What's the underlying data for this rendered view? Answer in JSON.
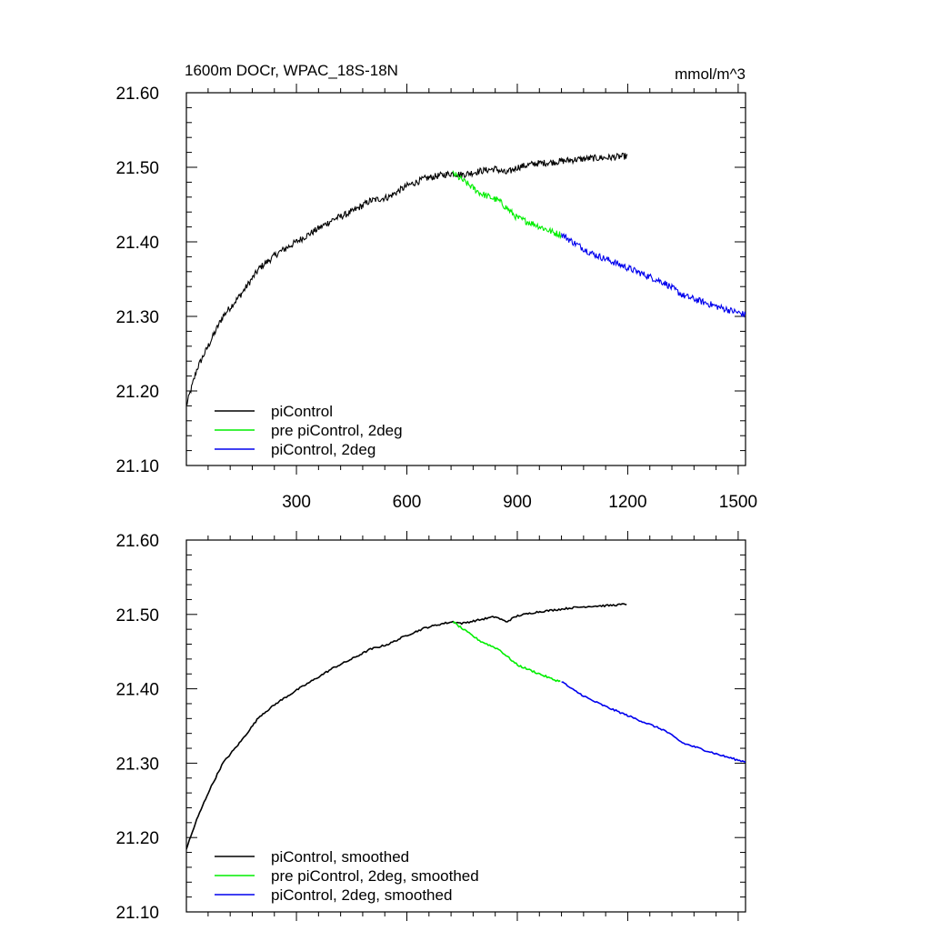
{
  "figure": {
    "title": "1600m DOCr, WPAC_18S-18N",
    "units": "mmol/m^3"
  },
  "colors": {
    "picontrol": "#000000",
    "pre_picontrol_2deg": "#00ee00",
    "picontrol_2deg": "#0000ee"
  },
  "chart_data": [
    {
      "type": "line",
      "panel": "top",
      "title": "1600m DOCr, WPAC_18S-18N",
      "units_label": "mmol/m^3",
      "xlim": [
        1,
        1520
      ],
      "ylim": [
        21.1,
        21.6
      ],
      "xticks": [
        300,
        600,
        900,
        1200,
        1500
      ],
      "xtick_labels": [
        "300",
        "600",
        "900",
        "1200",
        "1500"
      ],
      "yticks": [
        21.1,
        21.2,
        21.3,
        21.4,
        21.5,
        21.6
      ],
      "ytick_labels": [
        "21.10",
        "21.20",
        "21.30",
        "21.40",
        "21.50",
        "21.60"
      ],
      "legend_position": "bottom-left",
      "noisy": true,
      "series": [
        {
          "name": "piControl",
          "color_key": "picontrol",
          "x": [
            1,
            30,
            60,
            100,
            150,
            200,
            250,
            300,
            350,
            400,
            450,
            500,
            550,
            600,
            650,
            700,
            725,
            750,
            800,
            840,
            870,
            900,
            950,
            1000,
            1050,
            1100,
            1150,
            1200
          ],
          "y": [
            21.18,
            21.23,
            21.26,
            21.3,
            21.33,
            21.365,
            21.385,
            21.4,
            21.415,
            21.43,
            21.44,
            21.455,
            21.46,
            21.475,
            21.485,
            21.49,
            21.492,
            21.49,
            21.495,
            21.498,
            21.492,
            21.5,
            21.505,
            21.507,
            21.51,
            21.512,
            21.513,
            21.515
          ]
        },
        {
          "name": "pre piControl, 2deg",
          "color_key": "pre_picontrol_2deg",
          "x": [
            725,
            750,
            800,
            850,
            900,
            950,
            1000,
            1020
          ],
          "y": [
            21.492,
            21.483,
            21.465,
            21.455,
            21.432,
            21.423,
            21.412,
            21.41
          ]
        },
        {
          "name": "piControl, 2deg",
          "color_key": "picontrol_2deg",
          "x": [
            1020,
            1050,
            1100,
            1150,
            1200,
            1250,
            1300,
            1350,
            1400,
            1450,
            1500,
            1520
          ],
          "y": [
            21.41,
            21.4,
            21.385,
            21.375,
            21.365,
            21.355,
            21.345,
            21.328,
            21.32,
            21.312,
            21.305,
            21.302
          ]
        }
      ]
    },
    {
      "type": "line",
      "panel": "bottom",
      "xlim": [
        1,
        1520
      ],
      "ylim": [
        21.1,
        21.6
      ],
      "xticks": [
        300,
        600,
        900,
        1200,
        1500
      ],
      "xtick_labels": [],
      "yticks": [
        21.1,
        21.2,
        21.3,
        21.4,
        21.5,
        21.6
      ],
      "ytick_labels": [
        "21.10",
        "21.20",
        "21.30",
        "21.40",
        "21.50",
        "21.60"
      ],
      "legend_position": "bottom-left",
      "noisy": false,
      "series": [
        {
          "name": "piControl, smoothed",
          "color_key": "picontrol",
          "x": [
            1,
            30,
            60,
            100,
            150,
            200,
            250,
            300,
            350,
            400,
            450,
            500,
            550,
            600,
            650,
            700,
            725,
            750,
            800,
            840,
            870,
            900,
            950,
            1000,
            1050,
            1100,
            1150,
            1200
          ],
          "y": [
            21.185,
            21.225,
            21.26,
            21.3,
            21.33,
            21.363,
            21.382,
            21.398,
            21.413,
            21.428,
            21.44,
            21.453,
            21.46,
            21.472,
            21.482,
            21.488,
            21.49,
            21.488,
            21.493,
            21.497,
            21.49,
            21.498,
            21.503,
            21.506,
            21.509,
            21.511,
            21.512,
            21.514
          ]
        },
        {
          "name": "pre piControl, 2deg, smoothed",
          "color_key": "pre_picontrol_2deg",
          "x": [
            725,
            750,
            800,
            850,
            900,
            950,
            1000,
            1020
          ],
          "y": [
            21.49,
            21.481,
            21.464,
            21.453,
            21.432,
            21.422,
            21.412,
            21.41
          ]
        },
        {
          "name": "piControl, 2deg, smoothed",
          "color_key": "picontrol_2deg",
          "x": [
            1020,
            1050,
            1100,
            1150,
            1200,
            1250,
            1300,
            1350,
            1400,
            1450,
            1500,
            1520
          ],
          "y": [
            21.41,
            21.399,
            21.385,
            21.374,
            21.364,
            21.354,
            21.344,
            21.327,
            21.319,
            21.311,
            21.304,
            21.302
          ]
        }
      ]
    }
  ]
}
